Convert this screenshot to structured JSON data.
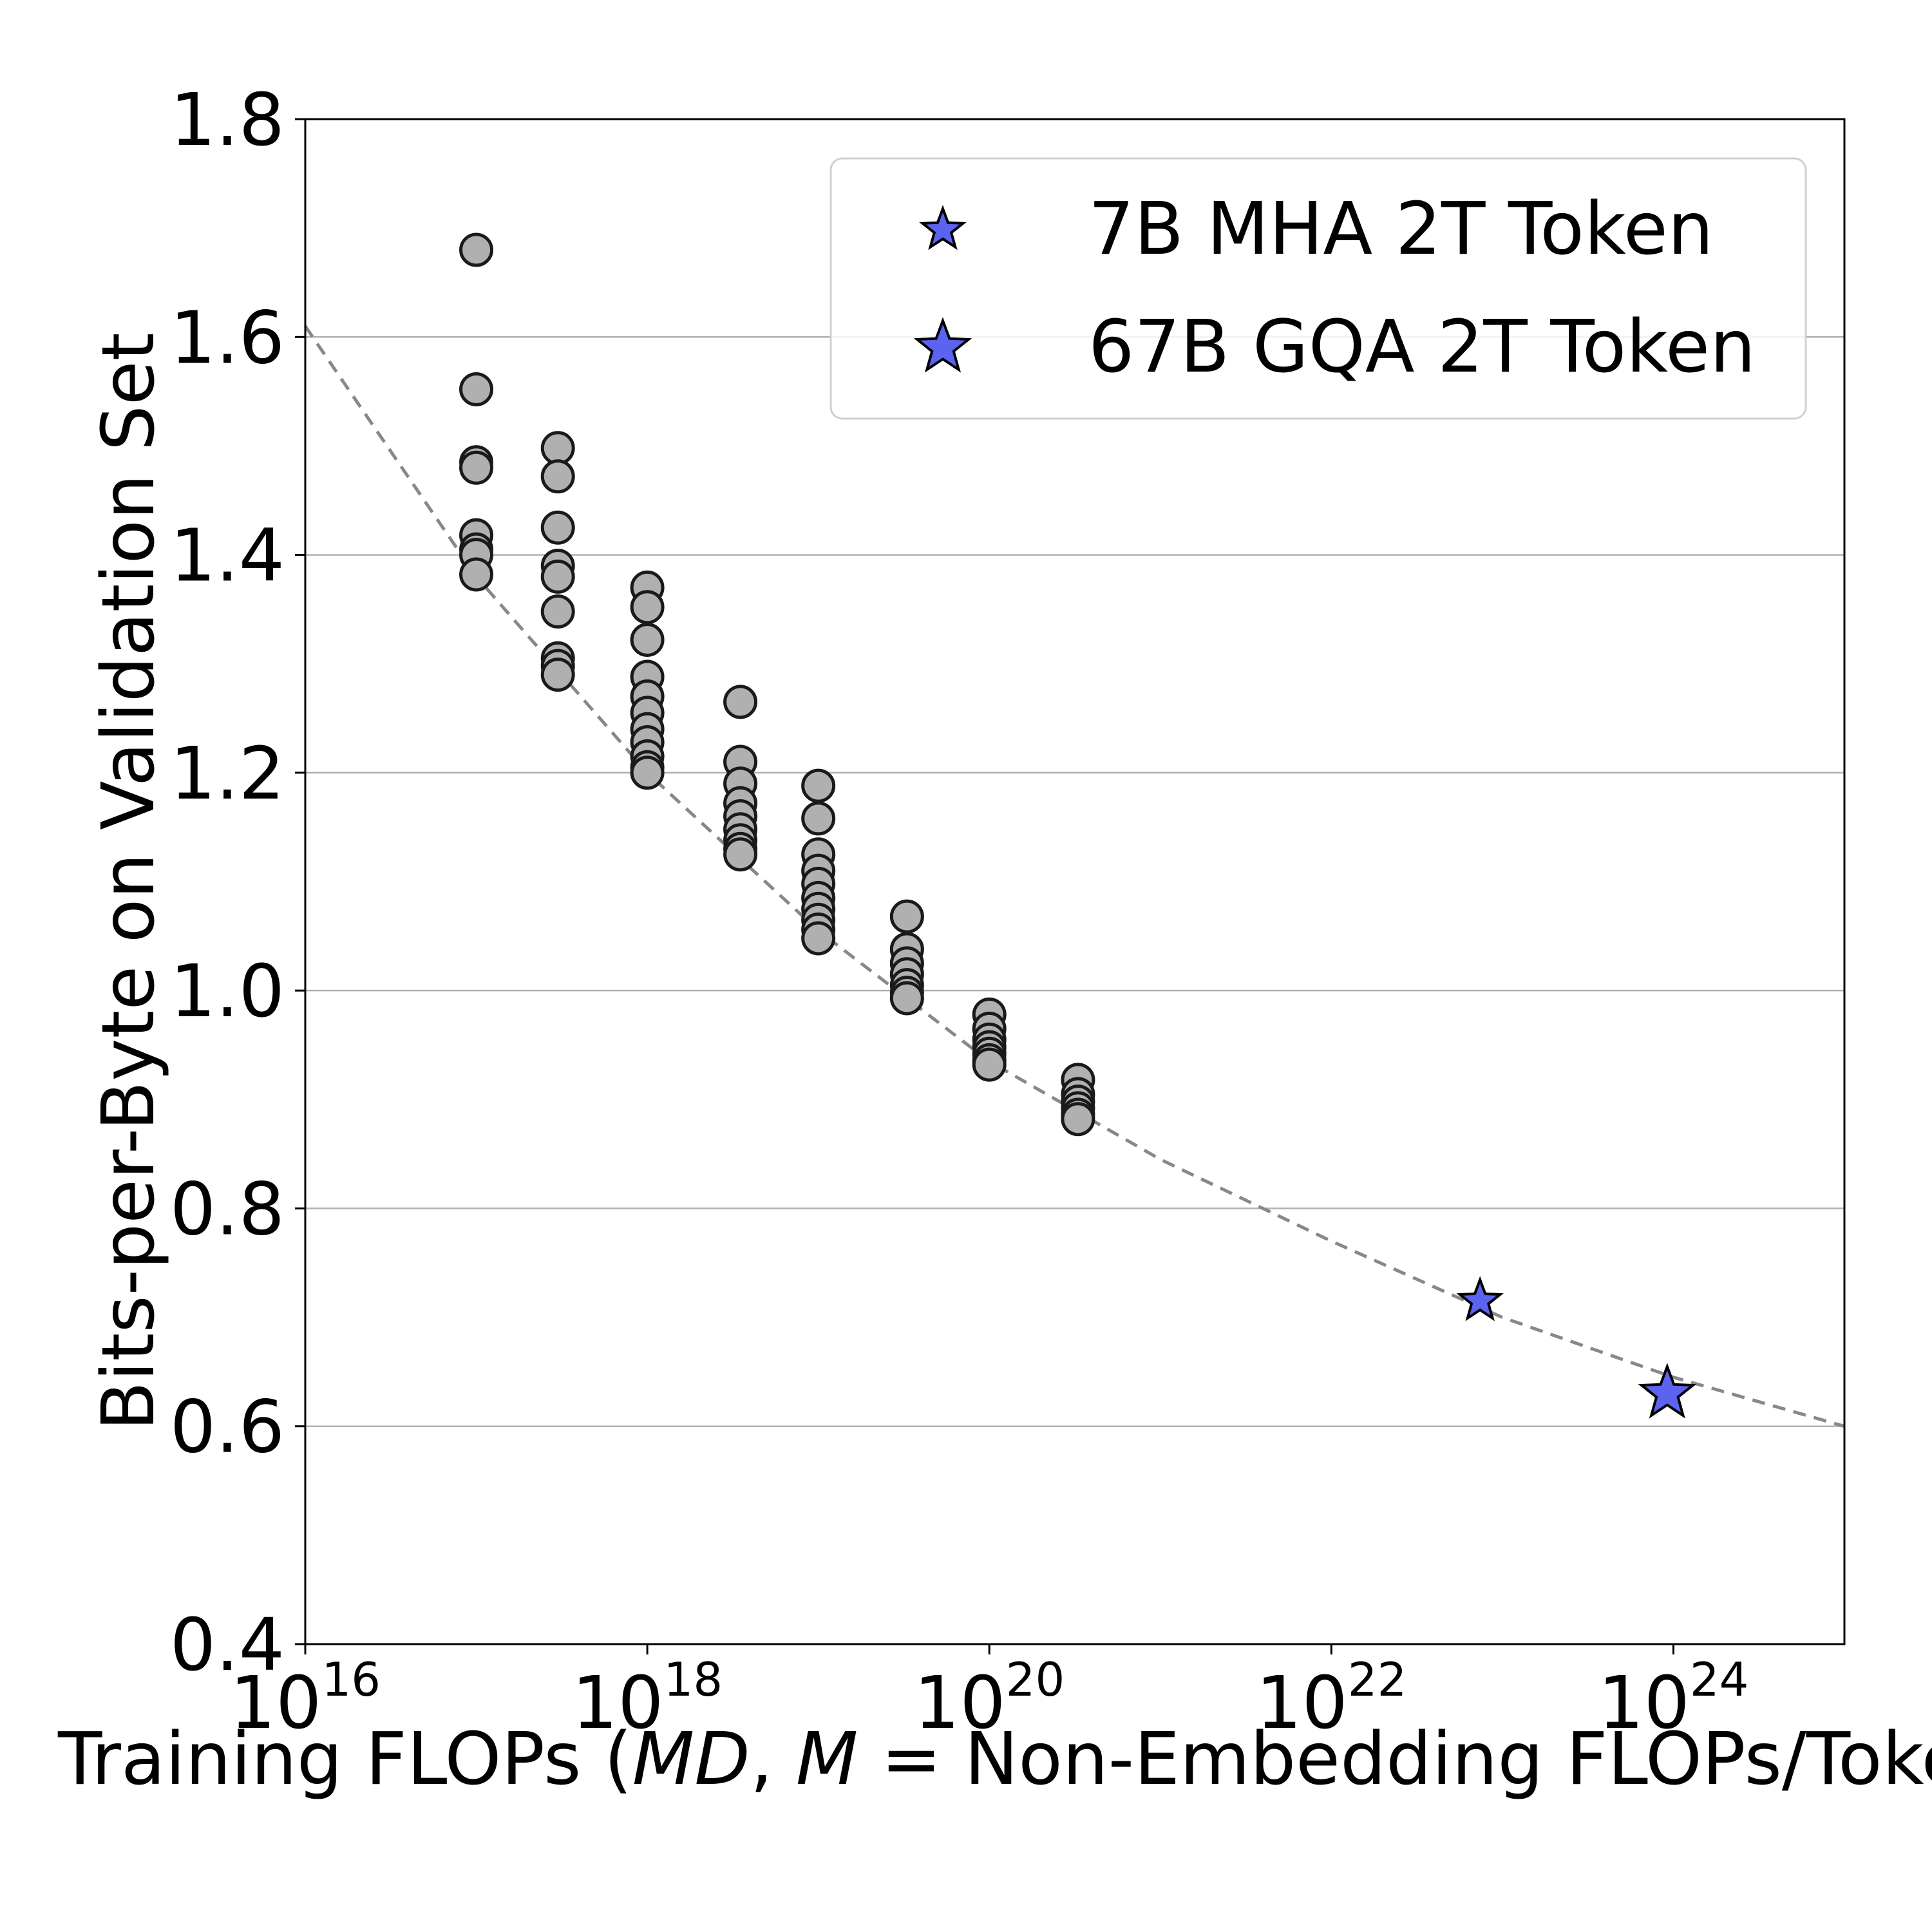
{
  "chart_data": {
    "type": "scatter",
    "title": "",
    "xlabel": {
      "prefix": "Training FLOPs (",
      "md": "MD",
      "comma": ", ",
      "m": "M",
      "suffix": " = Non-Embedding FLOPs/Token)"
    },
    "ylabel": "Bits-per-Byte on Validation Set",
    "x_scale": "log",
    "xlim": [
      1e+16,
      1e+25
    ],
    "ylim": [
      0.4,
      1.8
    ],
    "x_ticks": [
      {
        "base": "10",
        "exp": "16",
        "value": 1e+16
      },
      {
        "base": "10",
        "exp": "18",
        "value": 1e+18
      },
      {
        "base": "10",
        "exp": "20",
        "value": 1e+20
      },
      {
        "base": "10",
        "exp": "22",
        "value": 1e+22
      },
      {
        "base": "10",
        "exp": "24",
        "value": 1e+24
      }
    ],
    "y_ticks": [
      "0.4",
      "0.6",
      "0.8",
      "1.0",
      "1.2",
      "1.4",
      "1.6",
      "1.8"
    ],
    "grid": "horizontal",
    "legend_position": "top-right",
    "colors": {
      "points_fill": "#b0b0b0",
      "points_edge": "#1a1a1a",
      "star_fill": "#5b63f0",
      "fit_line": "#888888",
      "grid": "#b0b0b0"
    },
    "fit_line": {
      "style": "dashed",
      "points": [
        {
          "x": 1e+16,
          "y": 1.61
        },
        {
          "x": 1e+17,
          "y": 1.38
        },
        {
          "x": 1e+18,
          "y": 1.2
        },
        {
          "x": 1e+19,
          "y": 1.055
        },
        {
          "x": 1e+20,
          "y": 0.935
        },
        {
          "x": 1e+21,
          "y": 0.845
        },
        {
          "x": 1e+22,
          "y": 0.77
        },
        {
          "x": 1e+23,
          "y": 0.7
        },
        {
          "x": 1e+24,
          "y": 0.645
        },
        {
          "x": 1e+25,
          "y": 0.6
        }
      ]
    },
    "scatter_groups": [
      {
        "x": 1e+17,
        "y": [
          1.68,
          1.552,
          1.485,
          1.48,
          1.418,
          1.405,
          1.4,
          1.382
        ]
      },
      {
        "x": 3e+17,
        "y": [
          1.498,
          1.472,
          1.425,
          1.39,
          1.38,
          1.348,
          1.305,
          1.298,
          1.29
        ]
      },
      {
        "x": 1e+18,
        "y": [
          1.37,
          1.352,
          1.322,
          1.288,
          1.27,
          1.255,
          1.24,
          1.228,
          1.215,
          1.205,
          1.2
        ]
      },
      {
        "x": 3.5e+18,
        "y": [
          1.265,
          1.21,
          1.19,
          1.172,
          1.16,
          1.148,
          1.138,
          1.13,
          1.125
        ]
      },
      {
        "x": 1e+19,
        "y": [
          1.188,
          1.158,
          1.125,
          1.11,
          1.098,
          1.085,
          1.075,
          1.065,
          1.056,
          1.048
        ]
      },
      {
        "x": 3.3e+19,
        "y": [
          1.068,
          1.038,
          1.025,
          1.015,
          1.005,
          0.998,
          0.993
        ]
      },
      {
        "x": 1e+20,
        "y": [
          0.978,
          0.965,
          0.955,
          0.948,
          0.942,
          0.936,
          0.932
        ]
      },
      {
        "x": 3.3e+20,
        "y": [
          0.918,
          0.905,
          0.898,
          0.892,
          0.886,
          0.882
        ]
      }
    ],
    "series": [
      {
        "name": "7B MHA 2T Token",
        "x": 7.4e+22,
        "y": 0.715,
        "marker": "star",
        "size": "small"
      },
      {
        "name": "67B GQA 2T Token",
        "x": 9.2e+23,
        "y": 0.63,
        "marker": "star",
        "size": "large"
      }
    ]
  }
}
